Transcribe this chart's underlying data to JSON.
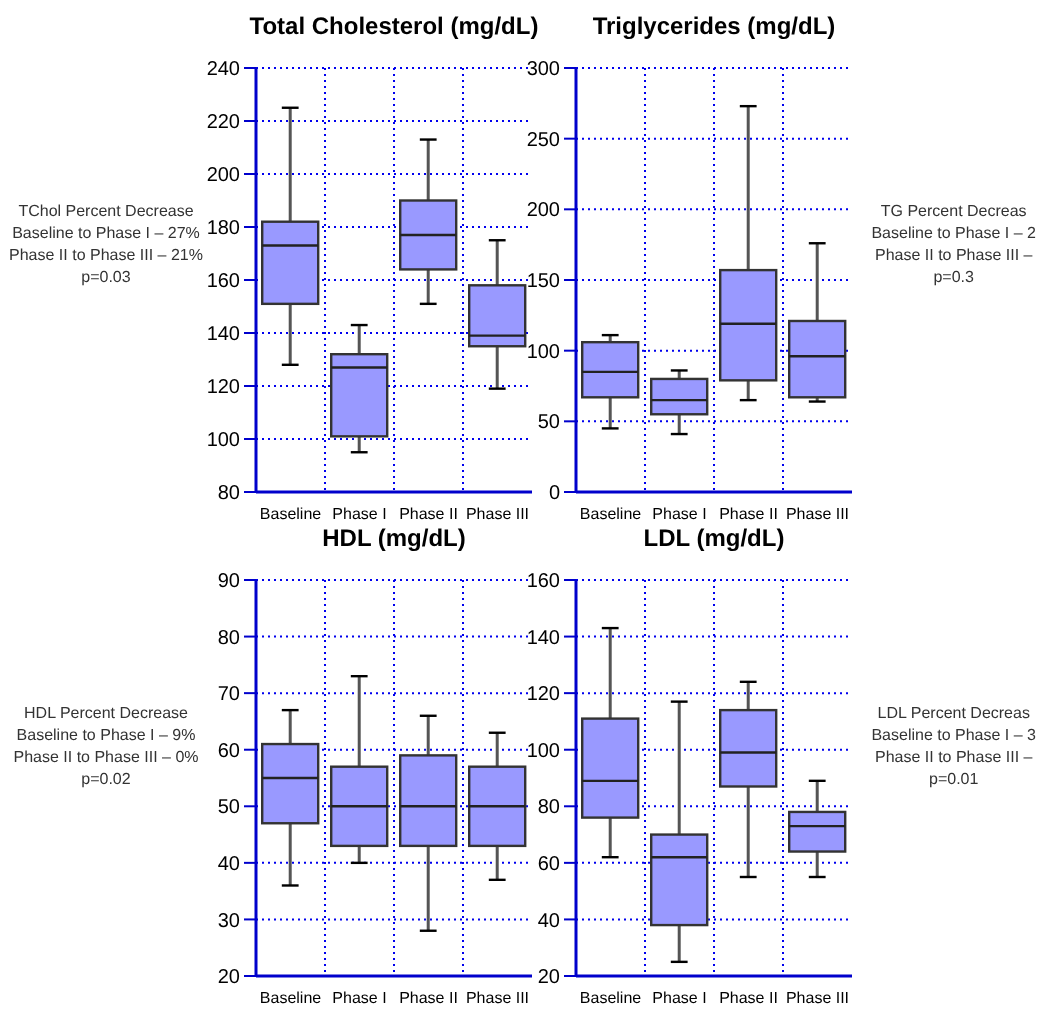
{
  "chart_data": [
    {
      "type": "box",
      "title": "Total Cholesterol (mg/dL)",
      "categories": [
        "Baseline",
        "Phase I",
        "Phase II",
        "Phase III"
      ],
      "ylim": [
        80,
        240
      ],
      "yticks": [
        80,
        100,
        120,
        140,
        160,
        180,
        200,
        220,
        240
      ],
      "grid": true,
      "annotations": [
        "TChol Percent Decrease",
        "Baseline to Phase I – 27%",
        "Phase II to Phase III – 21%",
        "p=0.03"
      ],
      "series": [
        {
          "color": "#9999ff",
          "boxes": [
            {
              "low": 128,
              "q1": 151,
              "median": 173,
              "q3": 182,
              "high": 225
            },
            {
              "low": 95,
              "q1": 101,
              "median": 127,
              "q3": 132,
              "high": 143
            },
            {
              "low": 151,
              "q1": 164,
              "median": 177,
              "q3": 190,
              "high": 213
            },
            {
              "low": 119,
              "q1": 135,
              "median": 139,
              "q3": 158,
              "high": 175
            }
          ]
        }
      ]
    },
    {
      "type": "box",
      "title": "Triglycerides (mg/dL)",
      "categories": [
        "Baseline",
        "Phase I",
        "Phase II",
        "Phase III"
      ],
      "ylim": [
        0,
        300
      ],
      "yticks": [
        0,
        50,
        100,
        150,
        200,
        250,
        300
      ],
      "grid": true,
      "annotations": [
        "TG Percent Decreas",
        "Baseline to Phase I – 2",
        "Phase II to Phase III –",
        "p=0.3"
      ],
      "series": [
        {
          "color": "#9999ff",
          "boxes": [
            {
              "low": 45,
              "q1": 67,
              "median": 85,
              "q3": 106,
              "high": 111
            },
            {
              "low": 41,
              "q1": 55,
              "median": 65,
              "q3": 80,
              "high": 86
            },
            {
              "low": 65,
              "q1": 79,
              "median": 119,
              "q3": 157,
              "high": 273
            },
            {
              "low": 64,
              "q1": 67,
              "median": 96,
              "q3": 121,
              "high": 176
            }
          ]
        }
      ]
    },
    {
      "type": "box",
      "title": "HDL (mg/dL)",
      "categories": [
        "Baseline",
        "Phase I",
        "Phase II",
        "Phase III"
      ],
      "ylim": [
        20,
        90
      ],
      "yticks": [
        20,
        30,
        40,
        50,
        60,
        70,
        80,
        90
      ],
      "grid": true,
      "annotations": [
        "HDL Percent Decrease",
        "Baseline to Phase I – 9%",
        "Phase II to Phase III – 0%",
        "p=0.02"
      ],
      "series": [
        {
          "color": "#9999ff",
          "boxes": [
            {
              "low": 36,
              "q1": 47,
              "median": 55,
              "q3": 61,
              "high": 67
            },
            {
              "low": 40,
              "q1": 43,
              "median": 50,
              "q3": 57,
              "high": 73
            },
            {
              "low": 28,
              "q1": 43,
              "median": 50,
              "q3": 59,
              "high": 66
            },
            {
              "low": 37,
              "q1": 43,
              "median": 50,
              "q3": 57,
              "high": 63
            }
          ]
        }
      ]
    },
    {
      "type": "box",
      "title": "LDL (mg/dL)",
      "categories": [
        "Baseline",
        "Phase I",
        "Phase II",
        "Phase III"
      ],
      "ylim": [
        20,
        160
      ],
      "yticks": [
        20,
        40,
        60,
        80,
        100,
        120,
        140,
        160
      ],
      "grid": true,
      "annotations": [
        "LDL Percent Decreas",
        "Baseline to Phase I – 3",
        "Phase II to Phase III –",
        "p=0.01"
      ],
      "series": [
        {
          "color": "#9999ff",
          "boxes": [
            {
              "low": 62,
              "q1": 76,
              "median": 89,
              "q3": 111,
              "high": 143
            },
            {
              "low": 25,
              "q1": 38,
              "median": 62,
              "q3": 70,
              "high": 117
            },
            {
              "low": 55,
              "q1": 87,
              "median": 99,
              "q3": 114,
              "high": 124
            },
            {
              "low": 55,
              "q1": 64,
              "median": 73,
              "q3": 78,
              "high": 89
            }
          ]
        }
      ]
    }
  ]
}
